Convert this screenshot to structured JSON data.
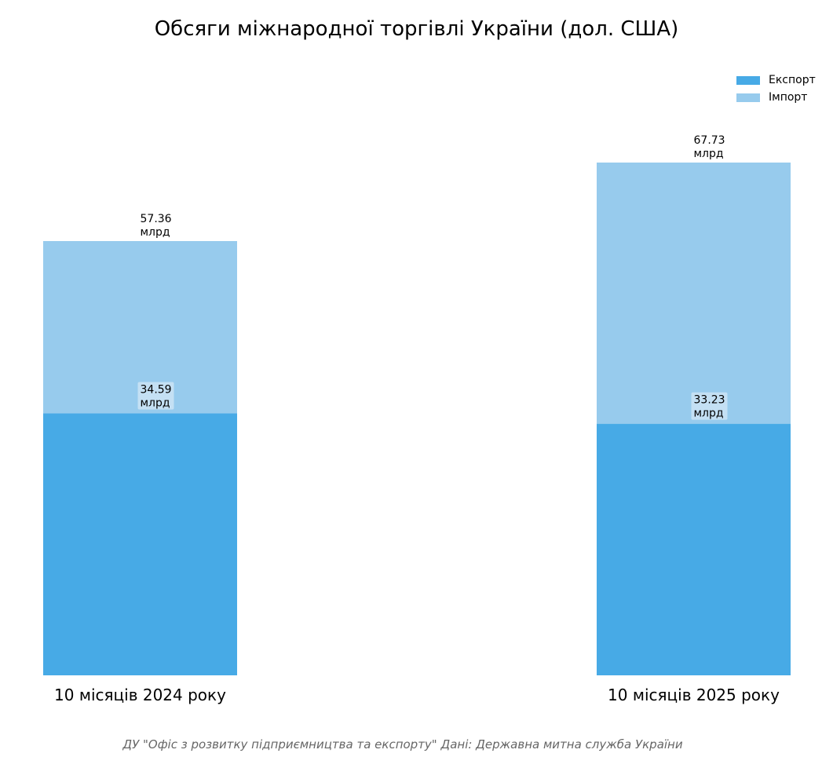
{
  "chart_data": {
    "type": "bar",
    "stacked": true,
    "title": "Обсяги міжнародної торгівлі України (дол. США)",
    "xlabel": "",
    "ylabel": "",
    "categories": [
      "10 місяців 2024 року",
      "10 місяців 2025 року"
    ],
    "series": [
      {
        "name": "Експорт",
        "values": [
          34.59,
          33.23
        ],
        "color": "#47aae6"
      },
      {
        "name": "Імпорт",
        "values": [
          22.77,
          34.5
        ],
        "color": "#97cbed"
      }
    ],
    "value_labels": {
      "export": [
        "34.59\nмлрд",
        "33.23\nмлрд"
      ],
      "total": [
        "57.36\nмлрд",
        "67.73\nмлрд"
      ]
    },
    "ylim": [
      0,
      67.73
    ],
    "grid": false,
    "legend_position": "top-right"
  },
  "footer": "ДУ \"Офіс з розвитку підприємництва та експорту\" Дані: Державна митна служба України"
}
